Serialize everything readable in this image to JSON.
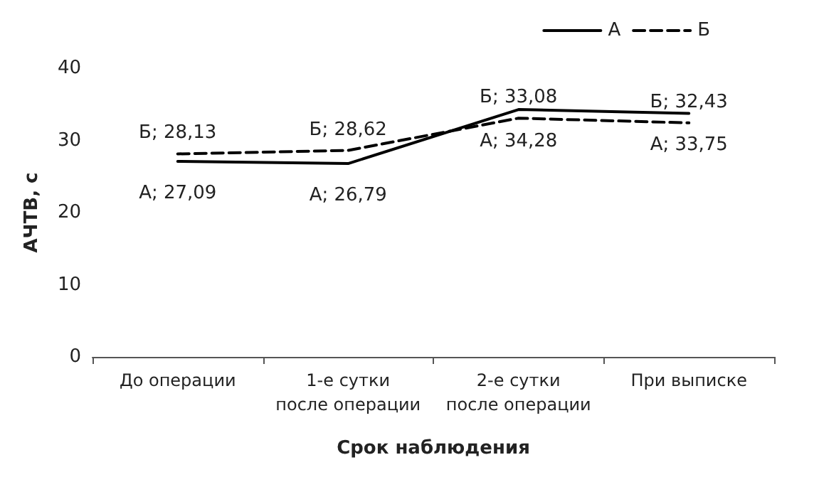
{
  "chart_data": {
    "type": "line",
    "xlabel": "Срок наблюдения",
    "ylabel": "АЧТВ, с",
    "categories": [
      "До операции",
      "1-е сутки\nпосле операции",
      "2-е сутки\nпосле операции",
      "При выписке"
    ],
    "series": [
      {
        "name": "А",
        "color": "#000000",
        "line_style": "solid",
        "values": [
          27.09,
          26.79,
          34.28,
          33.75
        ],
        "value_labels": [
          "А; 27,09",
          "А; 26,79",
          "А; 34,28",
          "А; 33,75"
        ]
      },
      {
        "name": "Б",
        "color": "#000000",
        "line_style": "dashed",
        "values": [
          28.13,
          28.62,
          33.08,
          32.43
        ],
        "value_labels": [
          "Б; 28,13",
          "Б; 28,62",
          "Б; 33,08",
          "Б; 32,43"
        ]
      }
    ],
    "ylim": [
      0,
      40
    ],
    "yticks": [
      0,
      10,
      20,
      30,
      40
    ],
    "grid": false,
    "legend": "top right",
    "marker": "none"
  }
}
